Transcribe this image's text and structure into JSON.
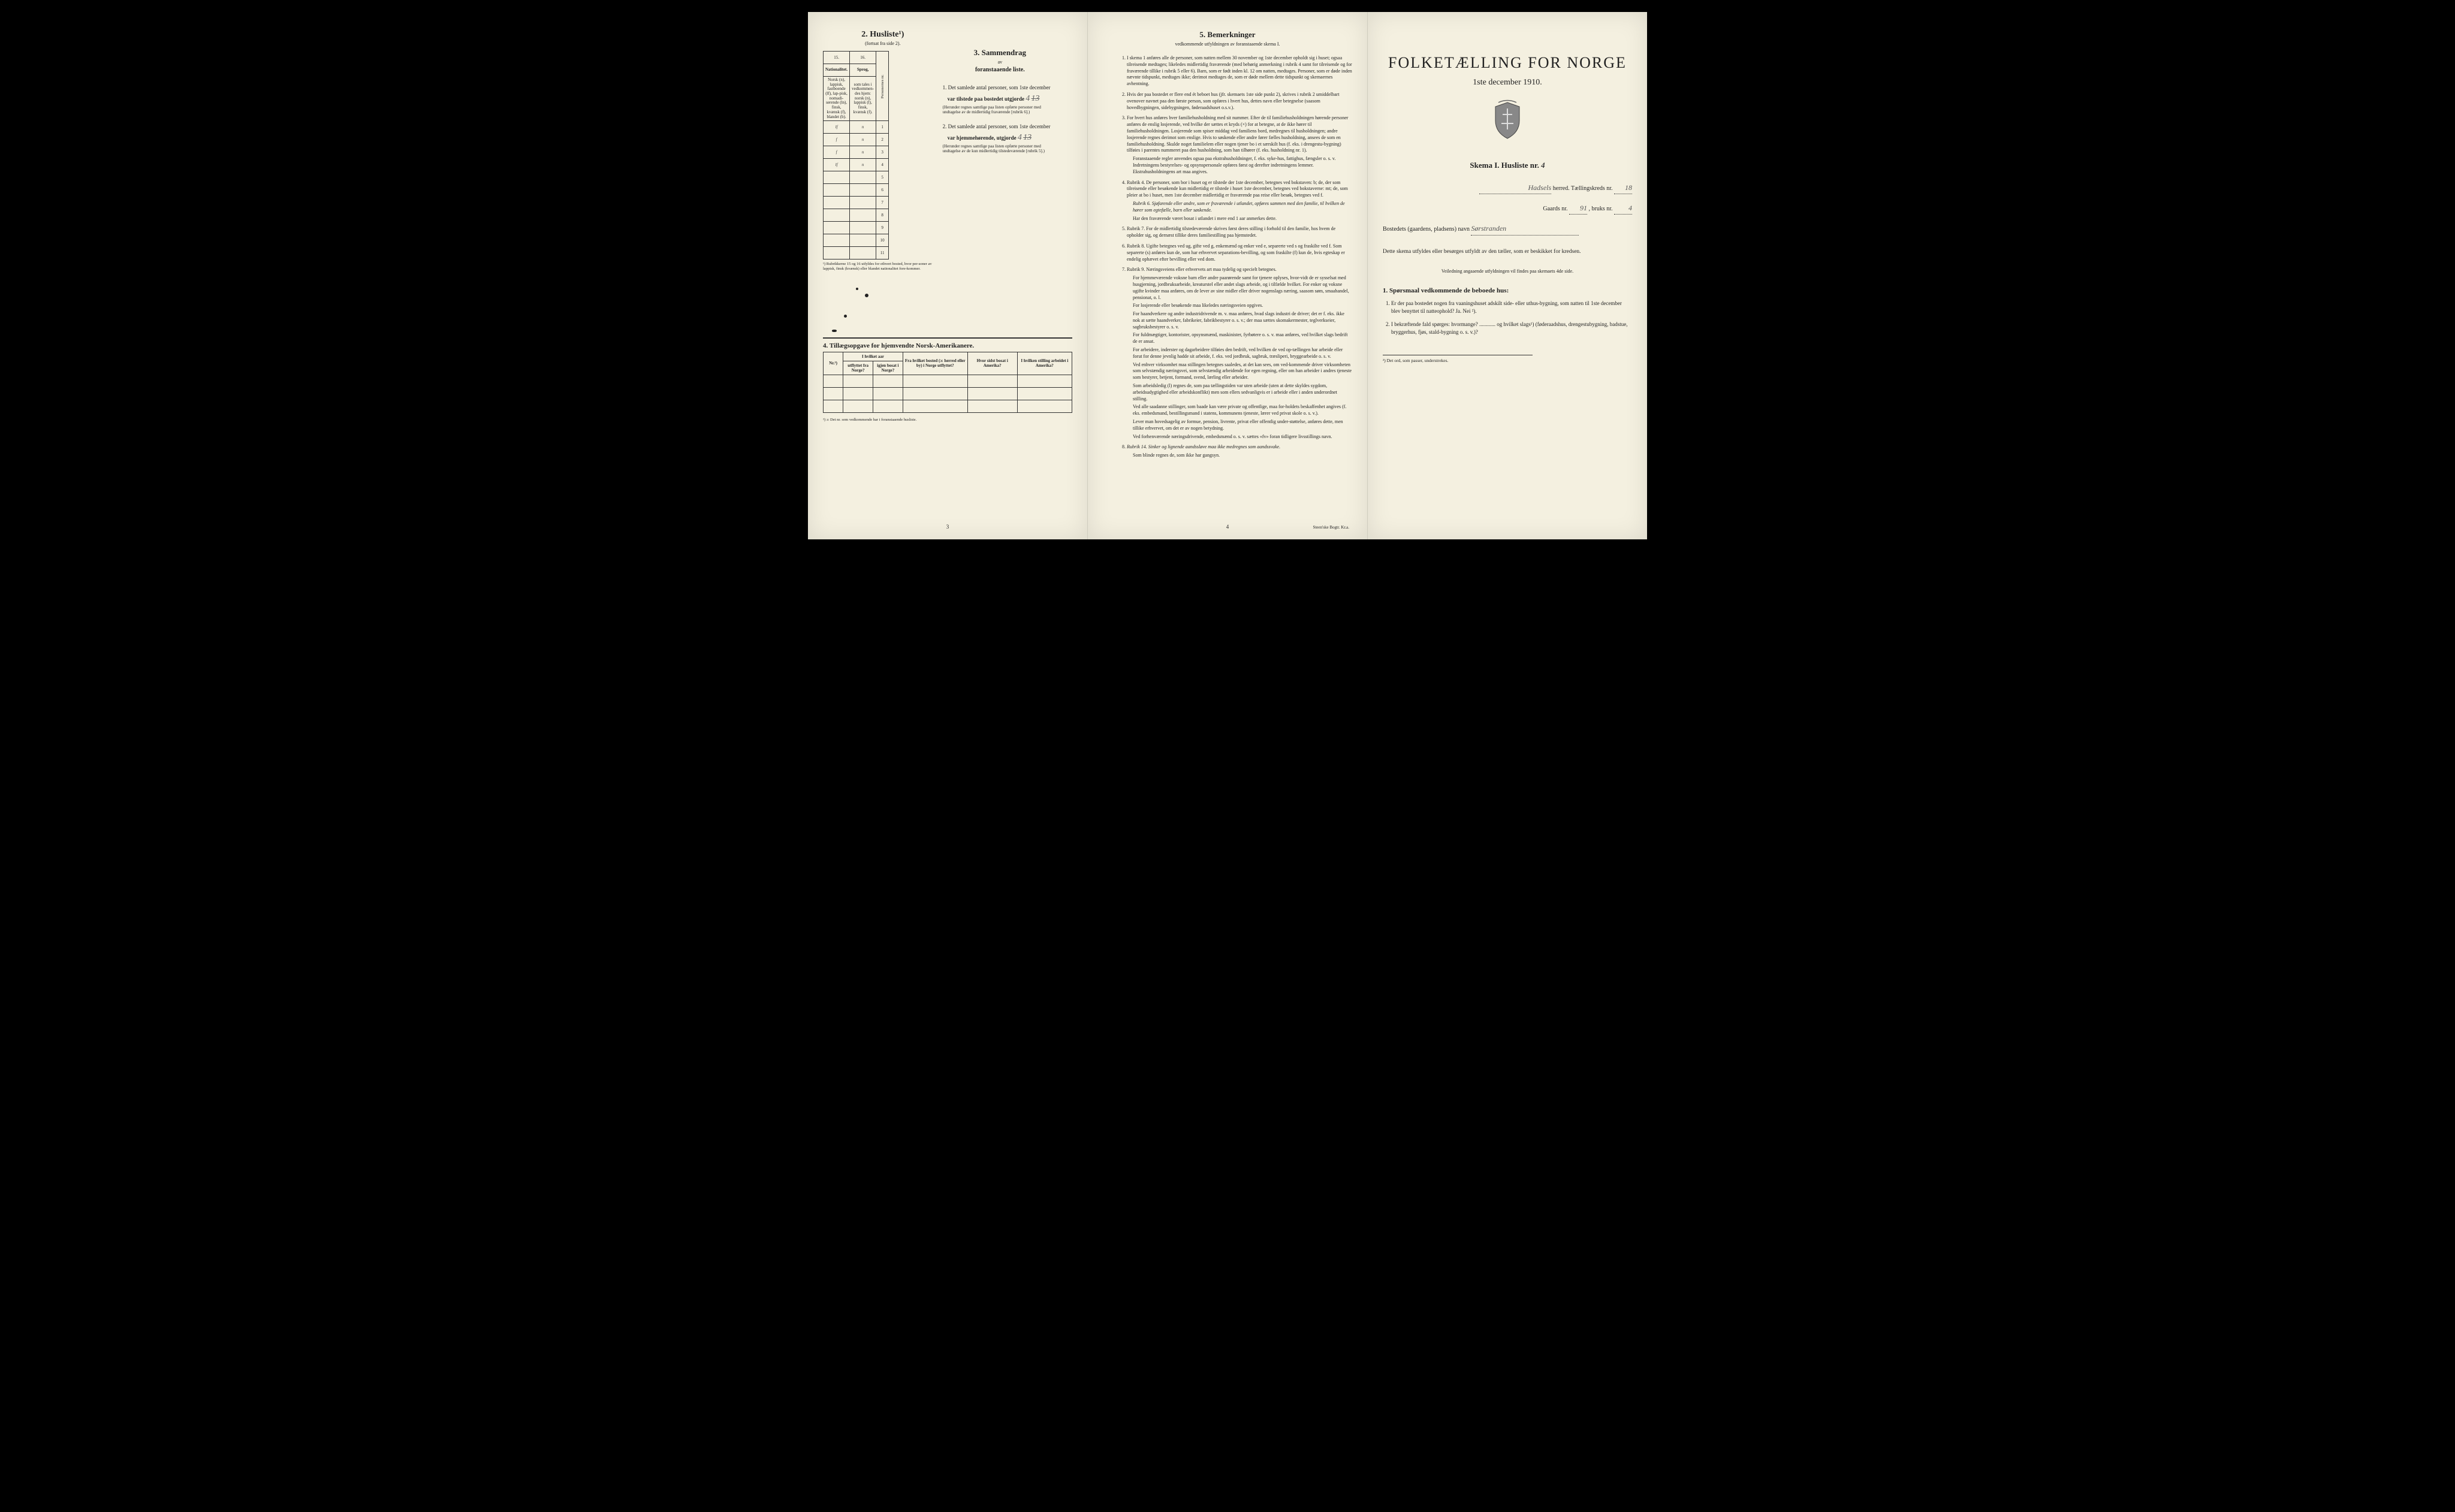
{
  "left": {
    "husliste_num": "2.",
    "husliste_title": "Husliste¹)",
    "husliste_sub": "(fortsat fra side 2).",
    "col15": "15.",
    "col16": "16.",
    "col15_label": "Nationalitet.",
    "col15_text": "Norsk (n), lappisk, fastboende (lf), lap-pisk, nomadi-serende (ln), finsk, kvænsk (f), blandet (b).",
    "col16_label": "Sprog,",
    "col16_text": "som tales i vedkommen-des hjem: norsk (n), lappisk (l), finsk, kvænsk (f).",
    "col_pers": "Personernes nr.",
    "rows": [
      {
        "c1": "lf",
        "c2": "n",
        "n": "1"
      },
      {
        "c1": "f",
        "c2": "n",
        "n": "2"
      },
      {
        "c1": "f",
        "c2": "n",
        "n": "3"
      },
      {
        "c1": "lf",
        "c2": "n",
        "n": "4"
      },
      {
        "c1": "",
        "c2": "",
        "n": "5"
      },
      {
        "c1": "",
        "c2": "",
        "n": "6"
      },
      {
        "c1": "",
        "c2": "",
        "n": "7"
      },
      {
        "c1": "",
        "c2": "",
        "n": "8"
      },
      {
        "c1": "",
        "c2": "",
        "n": "9"
      },
      {
        "c1": "",
        "c2": "",
        "n": "10"
      },
      {
        "c1": "",
        "c2": "",
        "n": "11"
      }
    ],
    "footnote1": "¹) Rubrikkerne 15 og 16 utfyldes for ethvert bosted, hvor per-soner av lappisk, finsk (kvænsk) eller blandet nationalitet fore-kommer.",
    "sammendrag_num": "3.",
    "sammendrag_title": "Sammendrag",
    "sammendrag_av": "av",
    "sammendrag_sub": "foranstaaende liste.",
    "item1_pre": "1. Det samlede antal personer, som 1ste december",
    "item1_mid": "var tilstede paa bostedet utgjorde",
    "item1_val": "4",
    "item1_val_strike": "13",
    "item1_note": "(Herunder regnes samtlige paa listen opførte personer med undtagelse av de midlertidig fraværende [rubrik 6].)",
    "item2_pre": "2. Det samlede antal personer, som 1ste december",
    "item2_mid": "var hjemmehørende, utgjorde",
    "item2_val": "4",
    "item2_val_strike": "13",
    "item2_note": "(Herunder regnes samtlige paa listen opførte personer med undtagelse av de kun midlertidig tilstedeværende [rubrik 5].)",
    "tillaeg_num": "4.",
    "tillaeg_title": "Tillægsopgave for hjemvendte Norsk-Amerikanere.",
    "tillaeg_headers": [
      "Nr.²)",
      "I hvilket aar",
      "Fra hvilket bosted (ɔ: herred eller by) i Norge utflyttet?",
      "Hvor sidst bosat i Amerika?",
      "I hvilken stilling arbeidet i Amerika?"
    ],
    "tillaeg_sub": [
      "",
      "utflyttet fra Norge?",
      "igjen bosat i Norge?",
      "",
      "",
      ""
    ],
    "footnote2": "²) ɔ: Det nr. som vedkommende har i foranstaaende husliste.",
    "page_num": "3"
  },
  "mid": {
    "num": "5.",
    "title": "Bemerkninger",
    "sub": "vedkommende utfyldningen av foranstaaende skema I.",
    "items": [
      "I skema 1 anføres alle de personer, som natten mellem 30 november og 1ste december opholdt sig i huset; ogsaa tilreisende medtages; likeledes midlertidig fraværende (med behørig anmerkning i rubrik 4 samt for tilreisende og for fraværende tillike i rubrik 5 eller 6). Barn, som er født inden kl. 12 om natten, medtages. Personer, som er døde inden nævnte tidspunkt, medtages ikke; derimot medtages de, som er døde mellem dette tidspunkt og skemaernes avhentning.",
      "Hvis der paa bostedet er flere end ét beboet hus (jfr. skemaets 1ste side punkt 2), skrives i rubrik 2 umiddelbart ovenover navnet paa den første person, som opføres i hvert hus, dettes navn eller betegnelse (saasom hovedbygningen, sidebygningen, føderaadshuset o.s.v.).",
      "For hvert hus anføres hver familiehusholdning med sit nummer. Efter de til familiehusholdningen hørende personer anføres de enslig losjerende, ved hvilke der sættes et kryds (×) for at betegne, at de ikke hører til familiehusholdningen. Losjerende som spiser middag ved familiens bord, medregnes til husholdningen; andre losjerende regnes derimot som enslige. Hvis to søskende eller andre fører fælles husholdning, ansees de som en familiehusholdning. Skulde noget familielem eller nogen tjener bo i et særskilt hus (f. eks. i drengestu-bygning) tilføies i parentes nummeret paa den husholdning, som han tilhører (f. eks. husholdning nr. 1).",
      "Rubrik 4. De personer, som bor i huset og er tilstede der 1ste december, betegnes ved bokstaven: b; de, der som tilreisende eller besøkende kun midlertidig er tilstede i huset 1ste december, betegnes ved bokstaverne: mt; de, som pleier at bo i huset, men 1ste december midlertidig er fraværende paa reise eller besøk, betegnes ved f.",
      "Rubrik 7. For de midlertidig tilstedeværende skrives først deres stilling i forhold til den familie, hos hvem de opholder sig, og dernæst tillike deres familiestilling paa hjemstedet.",
      "Rubrik 8. Ugifte betegnes ved ug, gifte ved g, enkemænd og enker ved e, separerte ved s og fraskilte ved f. Som separerte (s) anføres kun de, som har erhvervet separations-bevilling, og som fraskilte (f) kun de, hvis egteskap er endelig ophævet efter bevilling eller ved dom.",
      "Rubrik 9. Næringsveiens eller erhvervets art maa tydelig og specielt betegnes."
    ],
    "item3_extra": "Foranstaaende regler anvendes ogsaa paa ekstrahusholdninger, f. eks. syke-hus, fattighus, fængsler o. s. v. Indretningens bestyrelses- og opsynspersonale opføres først og derefter indretningens lemmer. Ekstrahusholdningens art maa angives.",
    "item4_extra1": "Rubrik 6. Sjøfarende eller andre, som er fraværende i utlandet, opføres sammen med den familie, til hvilken de hører som egtefælle, barn eller søskende.",
    "item4_extra2": "Har den fraværende været bosat i utlandet i mere end 1 aar anmerkes dette.",
    "item7_paras": [
      "For hjemmeværende voksne barn eller andre paarørende samt for tjenere oplyses, hvor-vidt de er sysselsat med husgjerning, jordbruksarbeide, kreaturstel eller andet slags arbeide, og i tilfælde hvilket. For enker og voksne ugifte kvinder maa anføres, om de lever av sine midler eller driver nogenslags næring, saasom søm, smaahandel, pensionat, o. l.",
      "For losjerende eller besøkende maa likeledes næringsveien opgives.",
      "For haandverkere og andre industridrivende m. v. maa anføres, hvad slags industri de driver; det er f. eks. ikke nok at sætte haandverker, fabrikeier, fabrikbestyrer o. s. v.; der maa sættes skomakermester, teglverkseier, sagbruksbestyrer o. s. v.",
      "For fuldmægtiger, kontorister, opsynsmænd, maskinister, fyrbøtere o. s. v. maa anføres, ved hvilket slags bedrift de er ansat.",
      "For arbeidere, inderster og dagarbeidere tilføies den bedrift, ved hvilken de ved op-tællingen har arbeide eller forut for denne jevnlig hadde sit arbeide, f. eks. ved jordbruk, sagbruk, træsliperi, bryggearbeide o. s. v.",
      "Ved enhver virksomhet maa stillingen betegnes saaledes, at det kan sees, om ved-kommende driver virksomheten som selvstændig næringsvei, som selvstændig arbeidende for egen regning, eller om han arbeider i andres tjeneste som bestyrer, betjent, formand, svend, lærling eller arbeider.",
      "Som arbeidsledig (l) regnes de, som paa tællingstiden var uten arbeide (uten at dette skyldes sygdom, arbeidsudygtighed eller arbeidskonflikt) men som ellers sedvanligvis er i arbeide eller i anden underordnet stilling.",
      "Ved alle saadanne stillinger, som baade kan være private og offentlige, maa for-holdets beskaffenhet angives (f. eks. embedsmand, bestillingsmand i statens, kommunens tjeneste, lærer ved privat skole o. s. v.).",
      "Lever man hovedsagelig av formue, pension, livrente, privat eller offentlig under-støttelse, anføres dette, men tillike erhvervet, om det er av nogen betydning.",
      "Ved forhenværende næringsdrivende, embedsmænd o. s. v. sættes «fv» foran tidligere livsstillings navn."
    ],
    "item8": "Rubrik 14. Sinker og lignende aandssløve maa ikke medregnes som aandssvake.",
    "item8_extra": "Som blinde regnes de, som ikke har gangsyn.",
    "page_num": "4",
    "printer": "Steen'ske Bogtr. Kr.a."
  },
  "right": {
    "main_title": "FOLKETÆLLING FOR NORGE",
    "date": "1ste december 1910.",
    "skema": "Skema I.   Husliste nr.",
    "skema_val": "4",
    "herred_label": "herred.   Tællingskreds nr.",
    "herred_val": "Hadsels",
    "kreds_val": "18",
    "gaards_label": "Gaards nr.",
    "gaards_val": "91",
    "bruks_label": ", bruks nr.",
    "bruks_val": "4",
    "bosted_label": "Bostedets (gaardens, pladsens) navn",
    "bosted_val": "Sørstranden",
    "intro1": "Dette skema utfyldes eller besørges utfyldt av den tæller, som er beskikket for kredsen.",
    "intro2": "Veiledning angaaende utfyldningen vil findes paa skemaets 4de side.",
    "sporsmaal_num": "1.",
    "sporsmaal": "Spørsmaal vedkommende de beboede hus:",
    "q1": "Er der paa bostedet nogen fra vaaningshuset adskilt side- eller uthus-bygning, som natten til 1ste december blev benyttet til natteophold?   Ja.   Nei ²).",
    "q2": "I bekræftende fald spørges: hvormange? ............ og hvilket slags¹) (føderaadshus, drengestubygning, badstue, bryggerhus, fjøs, stald-bygning o. s. v.)?",
    "footnote": "²) Det ord, som passer, understrekes."
  }
}
